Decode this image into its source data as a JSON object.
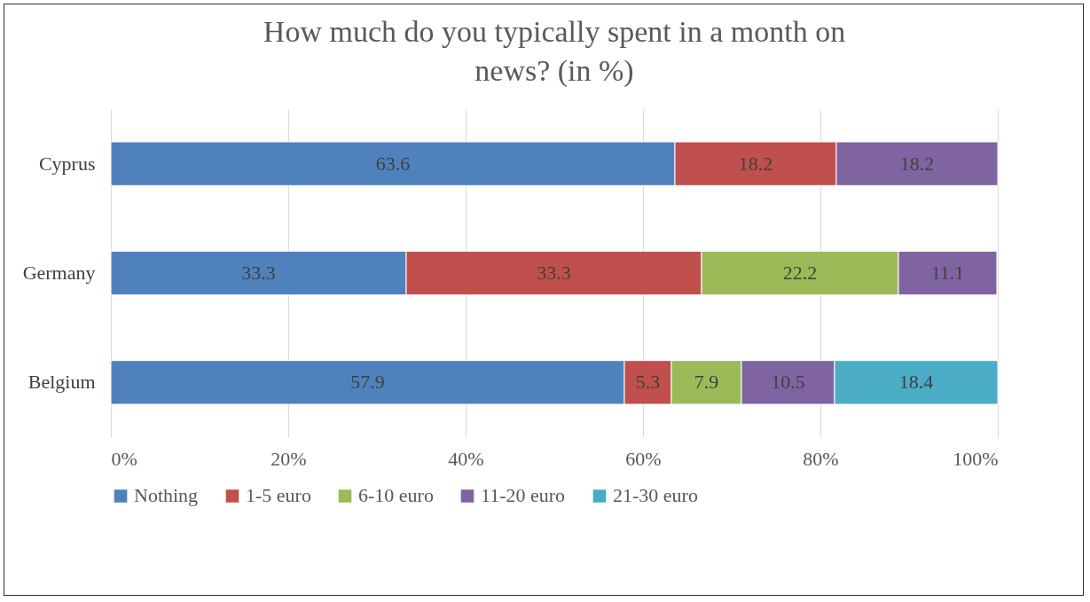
{
  "chart_data": {
    "type": "bar",
    "orientation": "horizontal",
    "stacked": true,
    "title": "How much do you typically spent in a month on news? (in %)",
    "categories": [
      "Cyprus",
      "Germany",
      "Belgium"
    ],
    "series": [
      {
        "name": "Nothing",
        "color": "#4f81bd",
        "values": [
          63.6,
          33.3,
          57.9
        ]
      },
      {
        "name": "1-5 euro",
        "color": "#c0504d",
        "values": [
          18.2,
          33.3,
          5.3
        ]
      },
      {
        "name": "6-10 euro",
        "color": "#9bbb59",
        "values": [
          null,
          22.2,
          7.9
        ]
      },
      {
        "name": "11-20 euro",
        "color": "#8064a2",
        "values": [
          18.2,
          11.1,
          10.5
        ]
      },
      {
        "name": "21-30 euro",
        "color": "#4bacc6",
        "values": [
          null,
          null,
          18.4
        ]
      }
    ],
    "xlim": [
      0,
      100
    ],
    "xticks": [
      {
        "value": 0,
        "label": "0%"
      },
      {
        "value": 20,
        "label": "20%"
      },
      {
        "value": 40,
        "label": "40%"
      },
      {
        "value": 60,
        "label": "60%"
      },
      {
        "value": 80,
        "label": "80%"
      },
      {
        "value": 100,
        "label": "100%"
      }
    ],
    "grid": "x",
    "legend": "bottom",
    "data_labels": true
  }
}
